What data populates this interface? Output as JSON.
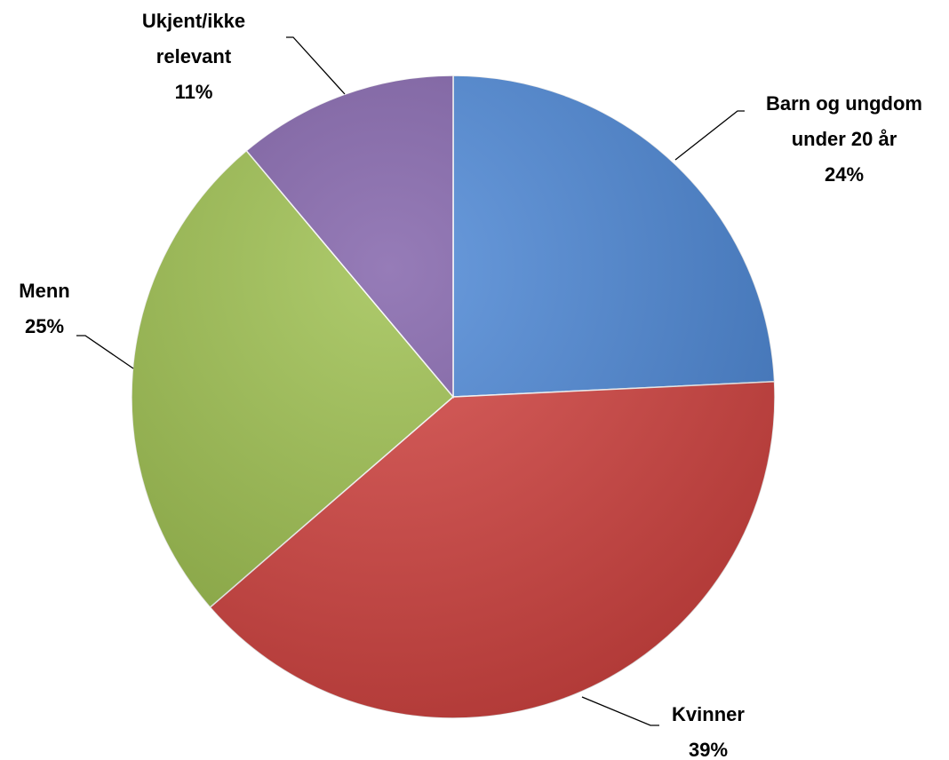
{
  "chart_data": {
    "type": "pie",
    "categories": [
      "Barn og ungdom under 20 år",
      "Kvinner",
      "Menn",
      "Ukjent/ikke relevant"
    ],
    "values": [
      24,
      39,
      25,
      11
    ],
    "value_labels": [
      "24%",
      "39%",
      "25%",
      "11%"
    ],
    "colors": [
      "#4a86d6",
      "#d4423f",
      "#9cbf4c",
      "#7f5fa8"
    ]
  }
}
